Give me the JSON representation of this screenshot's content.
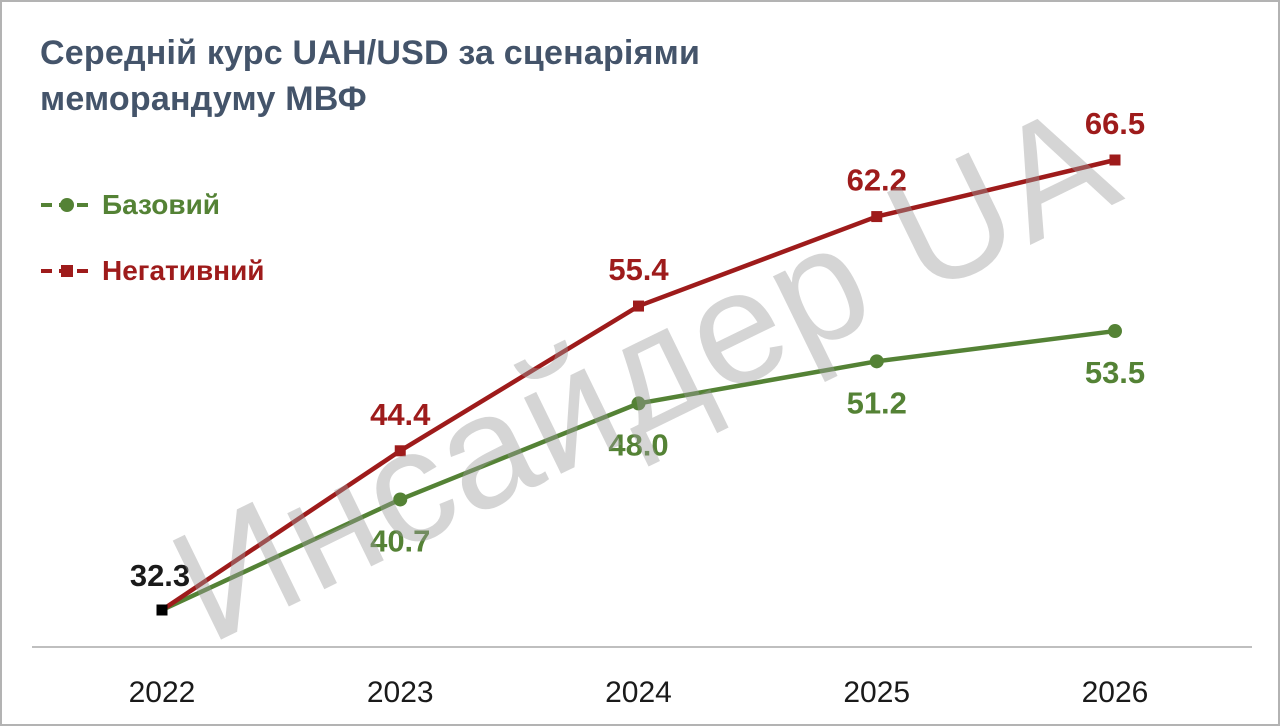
{
  "title": {
    "line1": "Середній курс UAH/USD за сценаріями",
    "line2": "меморандуму МВФ"
  },
  "watermark": "Инсайдер UA",
  "chart_data": {
    "type": "line",
    "title": "Середній курс UAH/USD за сценаріями меморандуму МВФ",
    "categories": [
      "2022",
      "2023",
      "2024",
      "2025",
      "2026"
    ],
    "series": [
      {
        "name": "Базовий",
        "color": "#548235",
        "marker": "circle",
        "values": [
          32.3,
          40.7,
          48.0,
          51.2,
          53.5
        ],
        "label_positions": [
          "above",
          "below",
          "below",
          "below",
          "below"
        ]
      },
      {
        "name": "Негативний",
        "color": "#9e1b1b",
        "marker": "square",
        "values": [
          32.3,
          44.4,
          55.4,
          62.2,
          66.5
        ],
        "label_positions": [
          "above",
          "above",
          "above",
          "above",
          "above"
        ]
      }
    ],
    "start_point": {
      "value": 32.3,
      "label": "32.3",
      "marker_color": "#000000",
      "label_color": "#1a1a1a"
    },
    "ylim": [
      32.3,
      66.5
    ],
    "xlabel": "",
    "ylabel": "",
    "grid": false,
    "legend_position": "left"
  },
  "colors": {
    "title": "#44546a",
    "axis_line": "#bfbfbf",
    "tick_label": "#1a1a1a",
    "watermark": "#9c9c9c",
    "border": "#b3b3b3"
  }
}
